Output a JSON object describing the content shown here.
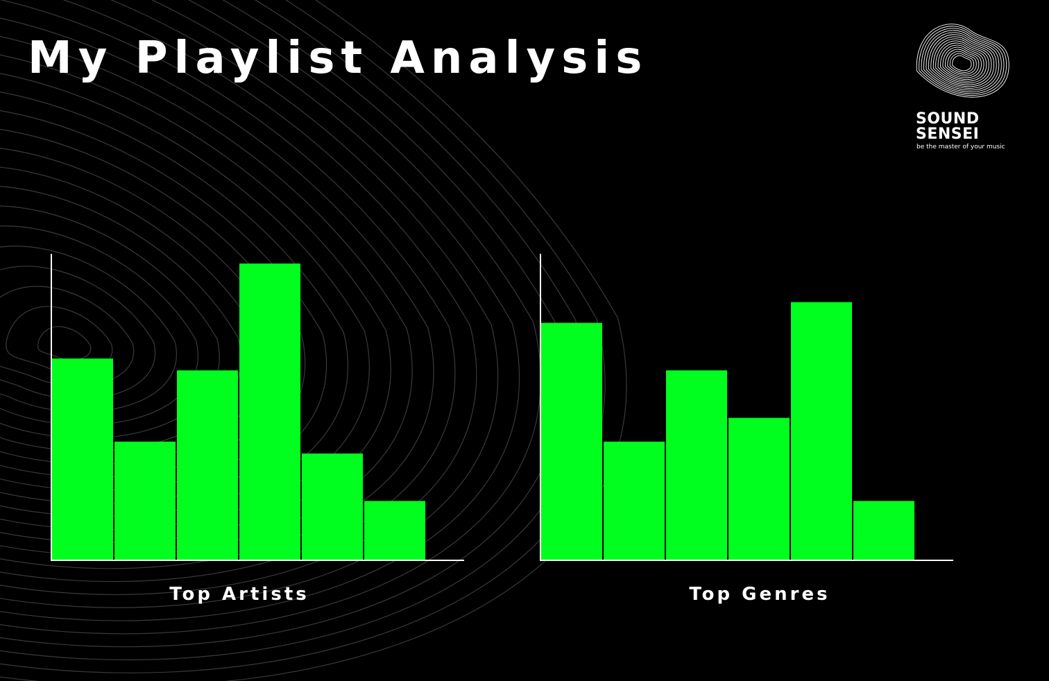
{
  "page": {
    "title": "My Playlist Analysis"
  },
  "brand": {
    "line1": "SOUND",
    "line2": "SENSEI",
    "tagline": "be the master of your music",
    "icon": "contour-wave-logo-icon"
  },
  "colors": {
    "background": "#000000",
    "bar": "#00ff1e",
    "axis": "#ffffff",
    "contour": "#3a3a3a",
    "text": "#ffffff"
  },
  "chart_data": [
    {
      "type": "bar",
      "title": "Top Artists",
      "categories": [
        "",
        "",
        "",
        "",
        "",
        ""
      ],
      "values": [
        68,
        40,
        64,
        100,
        36,
        20
      ],
      "ylim": [
        0,
        100
      ],
      "grid": false
    },
    {
      "type": "bar",
      "title": "Top Genres",
      "categories": [
        "",
        "",
        "",
        "",
        "",
        ""
      ],
      "values": [
        80,
        40,
        64,
        48,
        87,
        20
      ],
      "ylim": [
        0,
        100
      ],
      "grid": false
    }
  ]
}
